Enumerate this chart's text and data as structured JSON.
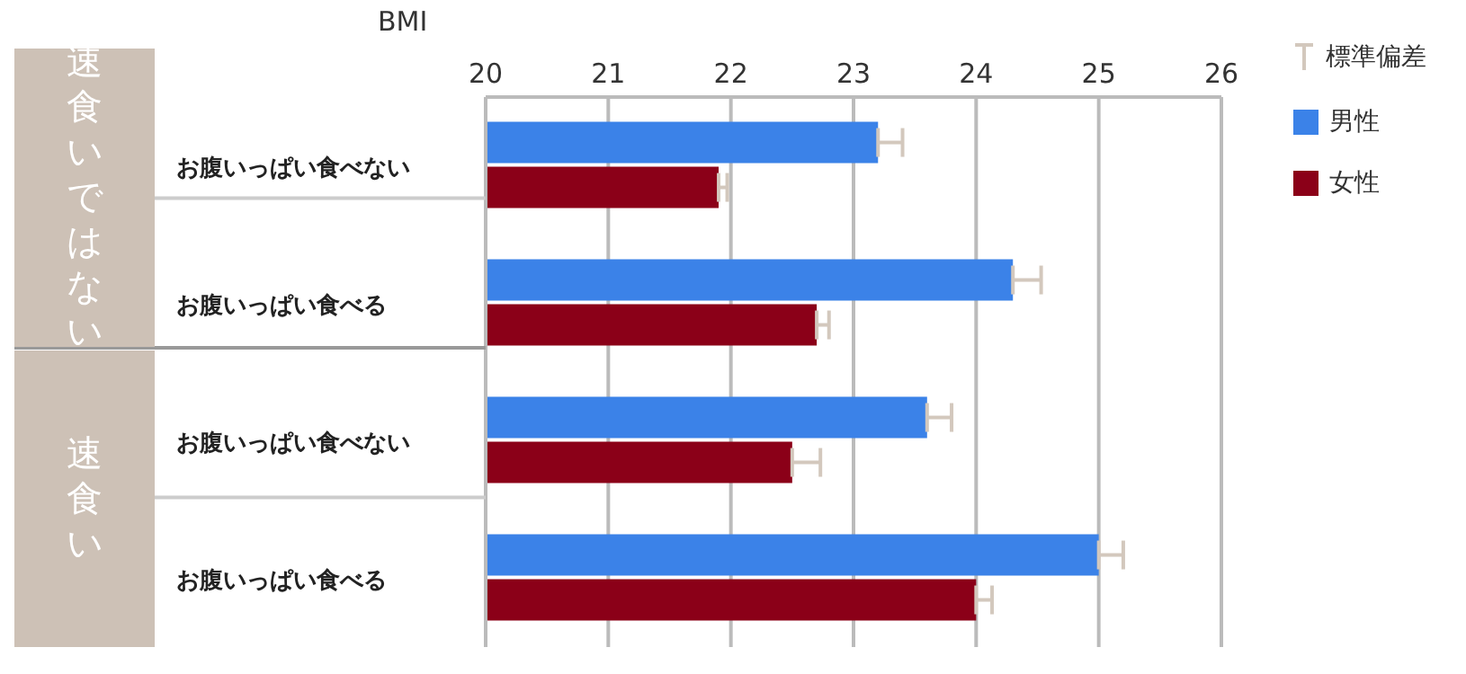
{
  "chart_data": {
    "type": "bar",
    "orientation": "horizontal",
    "xlabel": "BMI",
    "categories": [
      "お腹いっぱい食べない",
      "お腹いっぱい食べる",
      "お腹いっぱい食べない",
      "お腹いっぱい食べる"
    ],
    "series": [
      {
        "name": "男性",
        "color": "#3b82e8",
        "values": [
          23.2,
          24.3,
          23.6,
          25.0
        ],
        "errors": [
          0.2,
          0.23,
          0.2,
          0.2
        ]
      },
      {
        "name": "女性",
        "color": "#8b0018",
        "values": [
          21.9,
          22.7,
          22.5,
          24.0
        ],
        "errors": [
          0.07,
          0.1,
          0.23,
          0.13
        ]
      }
    ],
    "xlim": [
      20,
      26
    ],
    "xticks": [
      20,
      21,
      22,
      23,
      24,
      25,
      26
    ],
    "grid": "x",
    "legend": "right",
    "annotations": [
      "標準偏差",
      "速食いではない",
      "速食い"
    ]
  }
}
